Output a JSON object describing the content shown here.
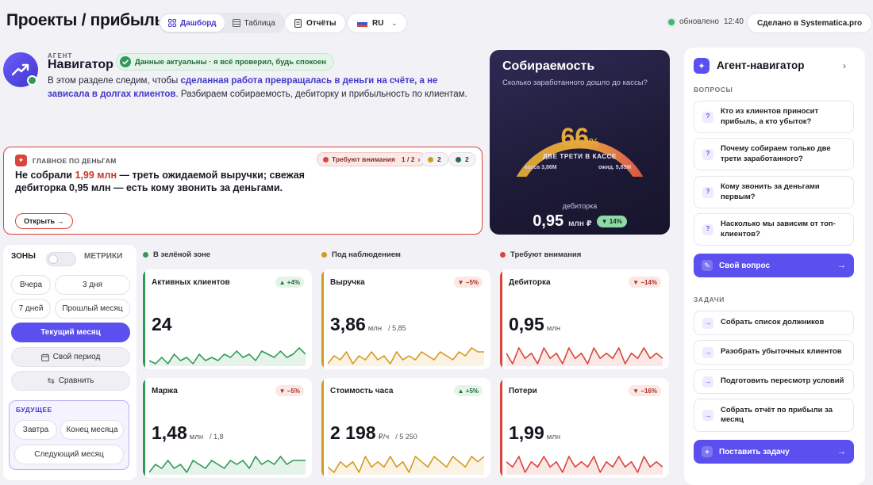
{
  "header": {
    "title": "Проекты / прибыль",
    "view_tabs": [
      {
        "label": "Дашборд",
        "icon": "grid-icon",
        "active": true
      },
      {
        "label": "Таблица",
        "icon": "table-icon",
        "active": false
      }
    ],
    "reports_label": "Отчёты",
    "language": "RU",
    "updated_label": "обновлено",
    "updated_time": "12:40",
    "made_in_label": "Сделано в Systematica.pro"
  },
  "agent_intro": {
    "role_label": "АГЕНТ",
    "name": "Навигатор",
    "status_text": "Данные актуальны · я всё проверил, будь спокоен",
    "text_before": "В этом разделе следим, чтобы ",
    "text_highlight": "сделанная работа превращалась в деньги на счёте, а не зависала в долгах клиентов",
    "text_after": ". Разбираем собираемость, дебиторку и прибыльность по клиентам."
  },
  "main_alert": {
    "label": "ГЛАВНОЕ ПО ДЕНЬГАМ",
    "attention_label": "Требуют внимания",
    "attention_pager": "1 / 2",
    "count_yellow": "2",
    "count_green": "2",
    "text_before": "Не собрали ",
    "text_amount": "1,99 млн",
    "text_after": " — треть ожидаемой выручки; свежая дебиторка 0,95 млн — есть кому звонить за деньгами.",
    "open_label": "Открыть →"
  },
  "collection": {
    "title": "Собираемость",
    "subtitle": "Сколько заработанного дошло до кассы?",
    "percent": 66,
    "percent_sign": "%",
    "caption": "ДВЕ ТРЕТИ В КАССЕ",
    "cash_label": "касса 3,86М",
    "expected_label": "ожид. 5,85М",
    "receivables_label": "дебиторка",
    "receivables_value": "0,95",
    "receivables_unit": "млн ₽",
    "receivables_delta": "▼ 14%"
  },
  "filters": {
    "zones_label": "ЗОНЫ",
    "metrics_label": "МЕТРИКИ",
    "periods": [
      "Вчера",
      "3 дня",
      "7 дней",
      "Прошлый месяц"
    ],
    "current_month": "Текущий месяц",
    "custom_period": "Свой период",
    "compare": "Сравнить",
    "future_label": "БУДУЩЕЕ",
    "future_periods": [
      "Завтра",
      "Конец месяца",
      "Следующий месяц"
    ]
  },
  "zones": [
    {
      "label": "В зелёной зоне",
      "color": "#2f9a57"
    },
    {
      "label": "Под наблюдением",
      "color": "#d39a1e"
    },
    {
      "label": "Требуют внимания",
      "color": "#d9443b"
    }
  ],
  "kpis": [
    {
      "title": "Активных клиентов",
      "value": "24",
      "unit": "",
      "plan": "",
      "delta": "▲ +4%",
      "trend": "up",
      "zone": 0,
      "series": [
        5,
        4,
        6,
        4,
        7,
        5,
        6,
        4,
        7,
        5,
        6,
        5,
        7,
        6,
        8,
        6,
        7,
        5,
        8,
        7,
        6,
        8,
        6,
        7,
        9,
        7
      ]
    },
    {
      "title": "Выручка",
      "value": "3,86",
      "unit": "млн",
      "plan": "/ 5,85",
      "delta": "▼ −5%",
      "trend": "down",
      "zone": 1,
      "series": [
        4,
        6,
        5,
        7,
        4,
        6,
        5,
        7,
        5,
        6,
        4,
        7,
        5,
        6,
        5,
        7,
        6,
        5,
        7,
        6,
        5,
        7,
        6,
        8,
        7,
        7
      ]
    },
    {
      "title": "Дебиторка",
      "value": "0,95",
      "unit": "млн",
      "plan": "",
      "delta": "▼ −14%",
      "trend": "down",
      "zone": 2,
      "series": [
        6,
        4,
        7,
        5,
        6,
        4,
        7,
        5,
        6,
        4,
        7,
        5,
        6,
        4,
        7,
        5,
        6,
        5,
        7,
        4,
        6,
        5,
        7,
        5,
        6,
        5
      ]
    },
    {
      "title": "Маржа",
      "value": "1,48",
      "unit": "млн",
      "plan": "/ 1,8",
      "delta": "▼ −5%",
      "trend": "down",
      "zone": 0,
      "series": [
        4,
        6,
        5,
        7,
        5,
        6,
        4,
        7,
        6,
        5,
        7,
        6,
        5,
        7,
        6,
        7,
        5,
        8,
        6,
        7,
        6,
        8,
        6,
        7,
        7,
        7
      ]
    },
    {
      "title": "Стоимость часа",
      "value": "2 198",
      "unit": "₽/ч",
      "plan": "/ 5 250",
      "delta": "▲ +5%",
      "trend": "up",
      "zone": 1,
      "series": [
        5,
        4,
        6,
        5,
        6,
        4,
        7,
        5,
        6,
        5,
        7,
        5,
        6,
        4,
        7,
        6,
        5,
        7,
        6,
        5,
        7,
        6,
        5,
        7,
        6,
        7
      ]
    },
    {
      "title": "Потери",
      "value": "1,99",
      "unit": "млн",
      "plan": "",
      "delta": "▼ −16%",
      "trend": "down",
      "zone": 2,
      "series": [
        6,
        5,
        7,
        4,
        6,
        5,
        7,
        5,
        6,
        4,
        7,
        5,
        6,
        5,
        7,
        4,
        6,
        5,
        7,
        5,
        6,
        4,
        7,
        5,
        6,
        5
      ]
    }
  ],
  "agent_panel": {
    "title": "Агент-навигатор",
    "questions_label": "ВОПРОСЫ",
    "questions": [
      "Кто из клиентов приносит прибыль, а кто убыток?",
      "Почему собираем только две трети заработанного?",
      "Кому звонить за деньгами первым?",
      "Насколько мы зависим от топ-клиентов?"
    ],
    "own_question": "Свой вопрос",
    "tasks_label": "ЗАДАЧИ",
    "tasks": [
      "Собрать список должников",
      "Разобрать убыточных клиентов",
      "Подготовить пересмотр условий",
      "Собрать отчёт по прибыли за месяц"
    ],
    "set_task": "Поставить задачу"
  }
}
